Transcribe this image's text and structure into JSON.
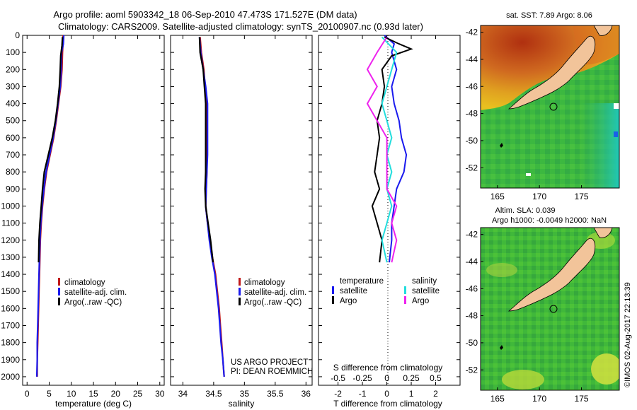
{
  "title": {
    "line1": "Argo profile: aoml 5903342_18 06-Sep-2010 47.473S 171.527E (DM data)",
    "line2": "Climatology: CARS2009. Satellite-adjusted climatology: synTS_20100907.nc (0.93d later)"
  },
  "colors": {
    "climatology": "#c01818",
    "satellite": "#1a1aee",
    "argo": "#000000",
    "argo_sal": "#ee22ee",
    "sat_sal": "#22dddd"
  },
  "chart_data": [
    {
      "type": "line",
      "name": "temperature",
      "xlabel": "temperature (deg C)",
      "ylabel": "",
      "xlim": [
        -1,
        31
      ],
      "ylim": [
        2050,
        0
      ],
      "xticks": [
        0,
        5,
        10,
        15,
        20,
        25,
        30
      ],
      "yticks": [
        0,
        100,
        200,
        300,
        400,
        500,
        600,
        700,
        800,
        900,
        1000,
        1100,
        1200,
        1300,
        1400,
        1500,
        1600,
        1700,
        1800,
        1900,
        2000
      ],
      "legend": [
        "climatology",
        "satellite-adj. clim.",
        "Argo(..raw -QC)"
      ],
      "series": [
        {
          "name": "climatology",
          "color": "#c01818",
          "points": [
            [
              8.1,
              0
            ],
            [
              8.1,
              50
            ],
            [
              8.0,
              100
            ],
            [
              7.9,
              200
            ],
            [
              7.6,
              300
            ],
            [
              7.1,
              400
            ],
            [
              6.6,
              500
            ],
            [
              6.0,
              600
            ],
            [
              5.2,
              700
            ],
            [
              4.4,
              800
            ],
            [
              3.9,
              900
            ],
            [
              3.5,
              1000
            ],
            [
              3.2,
              1100
            ],
            [
              3.0,
              1200
            ],
            [
              2.9,
              1300
            ],
            [
              2.8,
              1400
            ],
            [
              2.7,
              1500
            ],
            [
              2.6,
              1600
            ],
            [
              2.5,
              1700
            ],
            [
              2.4,
              1800
            ],
            [
              2.3,
              1900
            ],
            [
              2.3,
              2000
            ]
          ]
        },
        {
          "name": "satellite-adj. clim.",
          "color": "#1a1aee",
          "points": [
            [
              8.3,
              0
            ],
            [
              8.2,
              50
            ],
            [
              7.8,
              100
            ],
            [
              7.7,
              200
            ],
            [
              7.5,
              300
            ],
            [
              7.0,
              400
            ],
            [
              6.5,
              500
            ],
            [
              5.9,
              600
            ],
            [
              5.1,
              700
            ],
            [
              4.3,
              800
            ],
            [
              3.8,
              900
            ],
            [
              3.4,
              1000
            ],
            [
              3.1,
              1100
            ],
            [
              2.9,
              1200
            ],
            [
              2.8,
              1300
            ],
            [
              2.7,
              1400
            ],
            [
              2.6,
              1500
            ],
            [
              2.5,
              1600
            ],
            [
              2.4,
              1700
            ],
            [
              2.3,
              1800
            ],
            [
              2.3,
              1900
            ],
            [
              2.2,
              2000
            ]
          ]
        },
        {
          "name": "Argo(..raw -QC)",
          "color": "#000000",
          "points": [
            [
              8.0,
              10
            ],
            [
              7.9,
              60
            ],
            [
              7.6,
              120
            ],
            [
              7.5,
              200
            ],
            [
              7.3,
              300
            ],
            [
              6.9,
              400
            ],
            [
              6.4,
              500
            ],
            [
              5.7,
              600
            ],
            [
              4.8,
              700
            ],
            [
              3.9,
              800
            ],
            [
              3.5,
              900
            ],
            [
              3.2,
              1000
            ],
            [
              2.9,
              1100
            ],
            [
              2.7,
              1200
            ],
            [
              2.6,
              1330
            ]
          ]
        }
      ]
    },
    {
      "type": "line",
      "name": "salinity",
      "xlabel": "salinity",
      "xlim": [
        33.8,
        36.1
      ],
      "ylim": [
        2050,
        0
      ],
      "xticks": [
        34,
        34.5,
        35,
        35.5,
        36
      ],
      "legend": [
        "climatology",
        "satellite-adj. clim.",
        "Argo(..raw -QC)"
      ],
      "annotation": [
        "US ARGO PROJECT",
        "PI: DEAN ROEMMICH"
      ],
      "series": [
        {
          "name": "climatology",
          "color": "#c01818",
          "points": [
            [
              34.28,
              10
            ],
            [
              34.3,
              100
            ],
            [
              34.34,
              200
            ],
            [
              34.36,
              300
            ],
            [
              34.38,
              400
            ],
            [
              34.38,
              500
            ],
            [
              34.39,
              600
            ],
            [
              34.39,
              700
            ],
            [
              34.39,
              800
            ],
            [
              34.38,
              900
            ],
            [
              34.37,
              1000
            ],
            [
              34.4,
              1100
            ],
            [
              34.44,
              1200
            ],
            [
              34.48,
              1300
            ],
            [
              34.53,
              1400
            ],
            [
              34.56,
              1500
            ],
            [
              34.59,
              1600
            ],
            [
              34.61,
              1700
            ],
            [
              34.63,
              1800
            ],
            [
              34.65,
              1900
            ],
            [
              34.67,
              2000
            ]
          ]
        },
        {
          "name": "satellite-adj. clim.",
          "color": "#1a1aee",
          "points": [
            [
              34.27,
              10
            ],
            [
              34.29,
              100
            ],
            [
              34.33,
              200
            ],
            [
              34.37,
              300
            ],
            [
              34.4,
              400
            ],
            [
              34.4,
              500
            ],
            [
              34.4,
              600
            ],
            [
              34.4,
              700
            ],
            [
              34.39,
              800
            ],
            [
              34.38,
              900
            ],
            [
              34.37,
              1000
            ],
            [
              34.4,
              1100
            ],
            [
              34.43,
              1200
            ],
            [
              34.47,
              1300
            ],
            [
              34.52,
              1400
            ],
            [
              34.55,
              1500
            ],
            [
              34.58,
              1600
            ],
            [
              34.6,
              1700
            ],
            [
              34.62,
              1800
            ],
            [
              34.65,
              1900
            ],
            [
              34.67,
              2000
            ]
          ]
        },
        {
          "name": "Argo(..raw -QC)",
          "color": "#000000",
          "points": [
            [
              34.27,
              10
            ],
            [
              34.28,
              100
            ],
            [
              34.33,
              200
            ],
            [
              34.35,
              300
            ],
            [
              34.37,
              400
            ],
            [
              34.37,
              500
            ],
            [
              34.37,
              600
            ],
            [
              34.37,
              700
            ],
            [
              34.37,
              800
            ],
            [
              34.36,
              900
            ],
            [
              34.37,
              1000
            ],
            [
              34.41,
              1100
            ],
            [
              34.45,
              1200
            ],
            [
              34.49,
              1330
            ]
          ]
        }
      ]
    },
    {
      "type": "line",
      "name": "difference",
      "xlabel": "T difference from climatology",
      "xlabel_top": "S difference from climatology",
      "xlim": [
        -2.8,
        3.0
      ],
      "ylim": [
        2050,
        0
      ],
      "xticks": [
        -2,
        -1,
        0,
        1,
        2
      ],
      "sticks": [
        -0.5,
        -0.25,
        0,
        0.25,
        0.5
      ],
      "legend_temperature": {
        "heading": "temperature",
        "items": [
          "satellite",
          "Argo"
        ]
      },
      "legend_salinity": {
        "heading": "salinity",
        "items": [
          "satellite",
          "Argo"
        ]
      },
      "series": [
        {
          "name": "T satellite",
          "color": "#1a1aee",
          "points": [
            [
              -0.1,
              0
            ],
            [
              0.3,
              50
            ],
            [
              0.2,
              100
            ],
            [
              0.4,
              200
            ],
            [
              0.2,
              300
            ],
            [
              0.3,
              400
            ],
            [
              0.5,
              500
            ],
            [
              0.6,
              600
            ],
            [
              0.8,
              700
            ],
            [
              0.7,
              800
            ],
            [
              0.4,
              900
            ],
            [
              0.3,
              1000
            ],
            [
              0.2,
              1100
            ],
            [
              0.2,
              1200
            ],
            [
              0.1,
              1330
            ]
          ]
        },
        {
          "name": "T Argo",
          "color": "#000000",
          "points": [
            [
              -0.1,
              10
            ],
            [
              0.5,
              50
            ],
            [
              1.0,
              80
            ],
            [
              0.2,
              120
            ],
            [
              -0.2,
              200
            ],
            [
              -0.1,
              300
            ],
            [
              -0.2,
              400
            ],
            [
              -0.4,
              500
            ],
            [
              -0.3,
              600
            ],
            [
              -0.4,
              700
            ],
            [
              -0.5,
              800
            ],
            [
              -0.3,
              900
            ],
            [
              -0.6,
              1000
            ],
            [
              -0.4,
              1100
            ],
            [
              -0.2,
              1200
            ],
            [
              -0.3,
              1330
            ]
          ]
        },
        {
          "name": "S satellite",
          "color": "#22dddd",
          "points": [
            [
              -0.05,
              10
            ],
            [
              0.1,
              100
            ],
            [
              0.05,
              200
            ],
            [
              0.0,
              300
            ],
            [
              -0.05,
              400
            ],
            [
              0.0,
              500
            ],
            [
              0.05,
              600
            ],
            [
              0.0,
              700
            ],
            [
              0.05,
              800
            ],
            [
              0.0,
              900
            ],
            [
              0.05,
              1000
            ],
            [
              0.0,
              1100
            ],
            [
              -0.05,
              1200
            ],
            [
              0.0,
              1330
            ]
          ]
        },
        {
          "name": "S Argo",
          "color": "#ee22ee",
          "points": [
            [
              0.0,
              10
            ],
            [
              -0.1,
              100
            ],
            [
              -0.2,
              200
            ],
            [
              -0.1,
              300
            ],
            [
              -0.2,
              400
            ],
            [
              -0.1,
              500
            ],
            [
              0.0,
              600
            ],
            [
              0.0,
              700
            ],
            [
              0.0,
              800
            ],
            [
              0.0,
              900
            ],
            [
              0.1,
              1000
            ],
            [
              0.05,
              1100
            ],
            [
              0.1,
              1200
            ],
            [
              0.05,
              1330
            ]
          ]
        }
      ]
    },
    {
      "type": "heatmap",
      "name": "sst_map",
      "title": "sat. SST: 7.89 Argo: 8.06",
      "xlim": [
        163,
        179.5
      ],
      "ylim": [
        -53.5,
        -41.5
      ],
      "xticks": [
        165,
        170,
        175
      ],
      "yticks": [
        -42,
        -44,
        -46,
        -48,
        -50,
        -52
      ],
      "argo_position": {
        "lon": 171.527,
        "lat": -47.473
      }
    },
    {
      "type": "heatmap",
      "name": "sla_map",
      "title_line1": "Altim. SLA: 0.039",
      "title_line2": "Argo h1000: -0.0049 h2000: NaN",
      "xlim": [
        163,
        179.5
      ],
      "ylim": [
        -53.5,
        -41.5
      ],
      "xticks": [
        165,
        170,
        175
      ],
      "yticks": [
        -42,
        -44,
        -46,
        -48,
        -50,
        -52
      ],
      "argo_position": {
        "lon": 171.527,
        "lat": -47.473
      }
    }
  ],
  "footer": {
    "credit": "©IMOS 02-Aug-2017 22:13:39"
  }
}
